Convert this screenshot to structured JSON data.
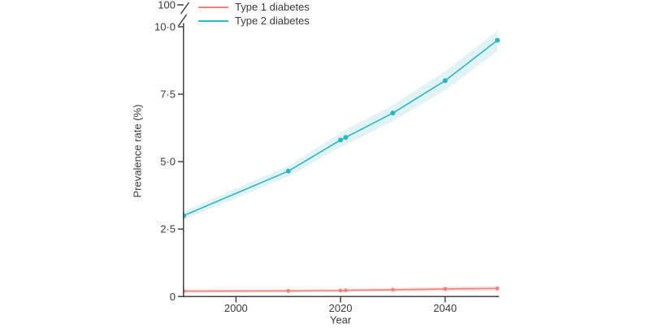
{
  "legend": {
    "items": [
      {
        "label": "Type 1 diabetes",
        "color": "#ef8578"
      },
      {
        "label": "Type 2 diabetes",
        "color": "#2cb5c3"
      }
    ]
  },
  "chart_data": {
    "type": "line",
    "title": "",
    "xlabel": "Year",
    "ylabel": "Prevalence rate (%)",
    "x": [
      1990,
      2010,
      2020,
      2021,
      2030,
      2040,
      2050
    ],
    "series": [
      {
        "name": "Type 1 diabetes",
        "color": "#ef8578",
        "band_color": "#fbe3e0",
        "marker_radius": 2.4,
        "values": [
          0.2,
          0.21,
          0.22,
          0.23,
          0.25,
          0.28,
          0.3
        ],
        "lower": [
          0.14,
          0.15,
          0.16,
          0.17,
          0.18,
          0.2,
          0.21
        ],
        "upper": [
          0.26,
          0.27,
          0.28,
          0.29,
          0.32,
          0.36,
          0.39
        ]
      },
      {
        "name": "Type 2 diabetes",
        "color": "#2cb5c3",
        "band_color": "#e2f3f5",
        "marker_radius": 3,
        "values": [
          3.0,
          4.65,
          5.8,
          5.9,
          6.8,
          8.0,
          9.5
        ],
        "lower": [
          2.85,
          4.45,
          5.55,
          5.62,
          6.5,
          7.65,
          9.1
        ],
        "upper": [
          3.15,
          4.85,
          6.05,
          6.18,
          7.1,
          8.35,
          9.85
        ]
      }
    ],
    "xlim": [
      1990,
      2050
    ],
    "ylim": [
      0,
      10
    ],
    "x_ticks": [
      {
        "value": 2000,
        "label": "2000"
      },
      {
        "value": 2020,
        "label": "2020"
      },
      {
        "value": 2040,
        "label": "2040"
      }
    ],
    "y_ticks": [
      {
        "value": 0,
        "label": "0"
      },
      {
        "value": 2.5,
        "label": "2·5"
      },
      {
        "value": 5,
        "label": "5·0"
      },
      {
        "value": 7.5,
        "label": "7·5"
      },
      {
        "value": 10,
        "label": "10·0"
      }
    ],
    "y_axis_break": {
      "top_label": "100"
    },
    "grid": false,
    "legend_position": "top-inside-left",
    "axis_color": "#404040",
    "text_color": "#3a3a3a"
  }
}
